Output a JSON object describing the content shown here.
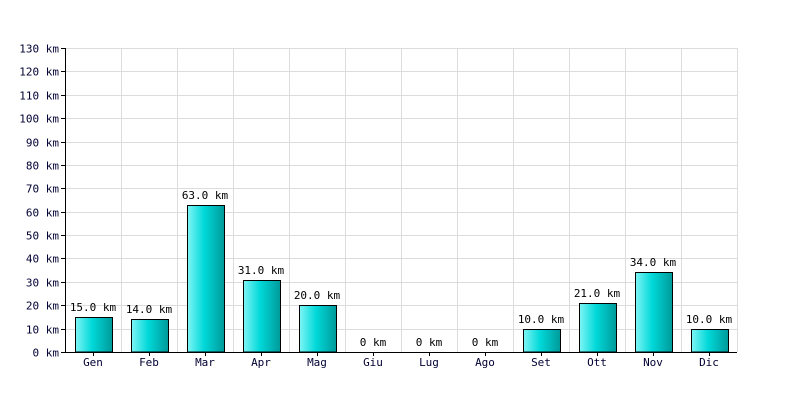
{
  "chart_data": {
    "type": "bar",
    "categories": [
      "Gen",
      "Feb",
      "Mar",
      "Apr",
      "Mag",
      "Giu",
      "Lug",
      "Ago",
      "Set",
      "Ott",
      "Nov",
      "Dic"
    ],
    "values": [
      15.0,
      14.0,
      63.0,
      31.0,
      20.0,
      0,
      0,
      0,
      10.0,
      21.0,
      34.0,
      10.0
    ],
    "data_labels": [
      "15.0 km",
      "14.0 km",
      "63.0 km",
      "31.0 km",
      "20.0 km",
      "0 km",
      "0 km",
      "0 km",
      "10.0 km",
      "21.0 km",
      "34.0 km",
      "10.0 km"
    ],
    "y_ticks": [
      0,
      10,
      20,
      30,
      40,
      50,
      60,
      70,
      80,
      90,
      100,
      110,
      120,
      130
    ],
    "y_tick_labels": [
      "0 km",
      "10 km",
      "20 km",
      "30 km",
      "40 km",
      "50 km",
      "60 km",
      "70 km",
      "80 km",
      "90 km",
      "100 km",
      "110 km",
      "120 km",
      "130 km"
    ],
    "ylim": [
      0,
      130
    ],
    "title": "",
    "xlabel": "",
    "ylabel": "",
    "grid": true,
    "colors": {
      "bar_light": "#7ff5f5",
      "bar_mid": "#00d8d8",
      "bar_dark": "#009a9a",
      "grid": "#dcdcdc",
      "axis": "#000000",
      "tick_text": "#000033"
    }
  }
}
